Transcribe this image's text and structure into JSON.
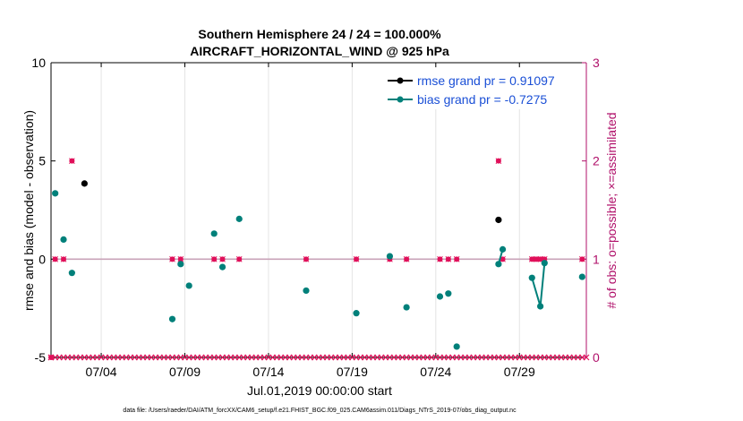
{
  "chart_data": {
    "type": "scatter",
    "title": "Southern Hemisphere 24 / 24 = 100.000%",
    "subtitle": "AIRCRAFT_HORIZONTAL_WIND @ 925 hPa",
    "ylabel_left": "rmse and bias (model - observation)",
    "ylabel_right": "# of obs: o=possible; ×=assimilated",
    "xlabel": "Jul.01,2019 00:00:00 start",
    "footer": "data file: /Users/raeder/DAI/ATM_forcXX/CAM6_setup/f.e21.FHIST_BGC.f09_025.CAM6assim.011/Diags_NTrS_2019-07/obs_diag_output.nc",
    "xlim": [
      0.5,
      32.5
    ],
    "ylim_left": [
      -5,
      10
    ],
    "ylim_right": [
      0,
      3
    ],
    "x_ticks": [
      3.5,
      8.5,
      13.5,
      18.5,
      23.5,
      28.5
    ],
    "x_tick_labels": [
      "07/04",
      "07/09",
      "07/14",
      "07/19",
      "07/24",
      "07/29"
    ],
    "y_ticks_left": [
      -5,
      0,
      5,
      10
    ],
    "y_tick_labels_left": [
      "-5",
      "0",
      "5",
      "10"
    ],
    "y_ticks_right": [
      0,
      1,
      2,
      3
    ],
    "y_tick_labels_right": [
      "0",
      "1",
      "2",
      "3"
    ],
    "zero_line": 0,
    "legend": [
      "rmse grand pr = 0.91097",
      "bias grand pr = -0.7275"
    ],
    "colors": {
      "rmse": "#000000",
      "bias": "#00807a",
      "obs": "#e0105a",
      "right_axis": "#b0106a",
      "legend_text": "#1a4fd6",
      "zero_line": "#c9a3b8",
      "grid": "#e4e4e4"
    },
    "series": [
      {
        "name": "rmse",
        "points": [
          [
            2.5,
            3.85
          ],
          [
            27.25,
            2.0
          ]
        ]
      },
      {
        "name": "bias",
        "points": [
          [
            0.75,
            3.35
          ],
          [
            1.25,
            1.0
          ],
          [
            1.75,
            -0.7
          ],
          [
            7.75,
            -3.05
          ],
          [
            8.25,
            -0.25
          ],
          [
            8.75,
            -1.35
          ],
          [
            10.25,
            1.3
          ],
          [
            10.75,
            -0.4
          ],
          [
            11.75,
            2.05
          ],
          [
            15.75,
            -1.6
          ],
          [
            18.75,
            -2.75
          ],
          [
            20.75,
            0.15
          ],
          [
            21.75,
            -2.45
          ],
          [
            23.75,
            -1.9
          ],
          [
            24.25,
            -1.75
          ],
          [
            24.75,
            -4.45
          ],
          [
            27.25,
            -0.25
          ],
          [
            27.5,
            0.5
          ],
          [
            29.25,
            -0.95
          ],
          [
            29.75,
            -2.4
          ],
          [
            30.0,
            -0.2
          ],
          [
            32.25,
            -0.9
          ]
        ],
        "connected_segments": [
          [
            [
              27.25,
              -0.25
            ],
            [
              27.5,
              0.5
            ]
          ],
          [
            [
              29.25,
              -0.95
            ],
            [
              29.75,
              -2.4
            ],
            [
              30.0,
              -0.2
            ]
          ]
        ]
      },
      {
        "name": "obs_possible",
        "points": [
          [
            0.5,
            0
          ],
          [
            0.75,
            1
          ],
          [
            1.25,
            1
          ],
          [
            1.75,
            2
          ],
          [
            7.75,
            1
          ],
          [
            8.25,
            1
          ],
          [
            10.25,
            1
          ],
          [
            10.75,
            1
          ],
          [
            11.75,
            1
          ],
          [
            15.75,
            1
          ],
          [
            18.75,
            1
          ],
          [
            20.75,
            1
          ],
          [
            21.75,
            1
          ],
          [
            23.75,
            1
          ],
          [
            24.25,
            1
          ],
          [
            24.75,
            1
          ],
          [
            27.25,
            2
          ],
          [
            27.5,
            1
          ],
          [
            29.25,
            1
          ],
          [
            29.5,
            1
          ],
          [
            29.75,
            1
          ],
          [
            30.0,
            1
          ],
          [
            32.25,
            1
          ]
        ]
      }
    ]
  }
}
